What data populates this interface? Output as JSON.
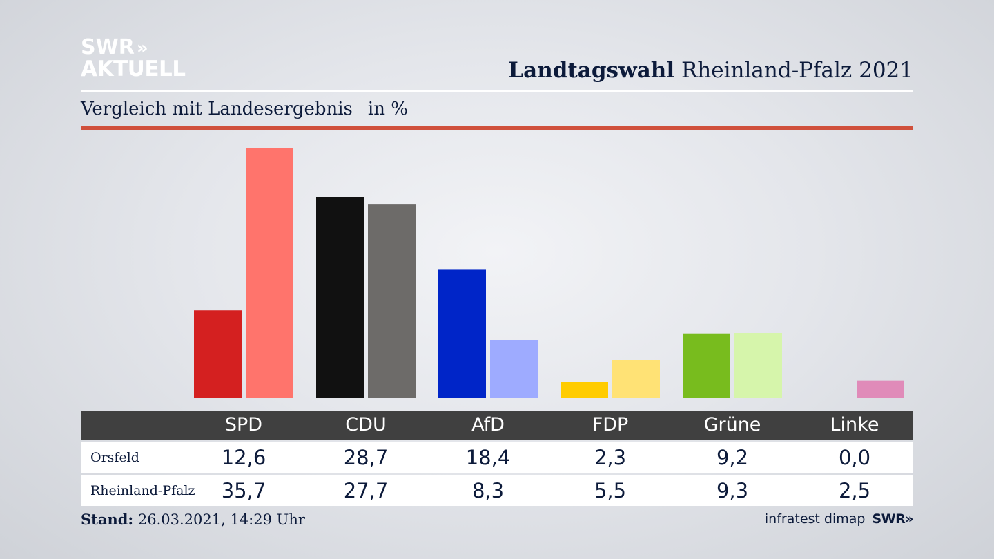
{
  "logo": {
    "line1": "SWR",
    "chevrons": "»",
    "line2": "AKTUELL"
  },
  "header": {
    "title_bold": "Landtagswahl",
    "title_rest": "Rheinland-Pfalz 2021"
  },
  "subtitle": {
    "text": "Vergleich mit Landesergebnis",
    "unit": "in %"
  },
  "footer": {
    "stand_label": "Stand:",
    "stand_value": "26.03.2021, 14:29 Uhr",
    "source": "infratest dimap",
    "source_logo": "SWR»"
  },
  "colors": {
    "accent_rule": "#d0503c",
    "series_local": [
      "#d42020",
      "#111111",
      "#0025c8",
      "#ffcc00",
      "#78bc1e",
      "#e2218a"
    ],
    "series_state": [
      "#ff746c",
      "#6d6b69",
      "#9eabff",
      "#ffe275",
      "#d6f5ab",
      "#e08bb9"
    ]
  },
  "chart_data": {
    "type": "bar",
    "categories": [
      "SPD",
      "CDU",
      "AfD",
      "FDP",
      "Grüne",
      "Linke"
    ],
    "series": [
      {
        "name": "Orsfeld",
        "values": [
          12.6,
          28.7,
          18.4,
          2.3,
          9.2,
          0.0
        ]
      },
      {
        "name": "Rheinland-Pfalz",
        "values": [
          35.7,
          27.7,
          8.3,
          5.5,
          9.3,
          2.5
        ]
      }
    ],
    "display_values": [
      [
        "12,6",
        "28,7",
        "18,4",
        "2,3",
        "9,2",
        "0,0"
      ],
      [
        "35,7",
        "27,7",
        "8,3",
        "5,5",
        "9,3",
        "2,5"
      ]
    ],
    "ylim": [
      0,
      35.7
    ],
    "grid": false,
    "legend": "table-below"
  }
}
